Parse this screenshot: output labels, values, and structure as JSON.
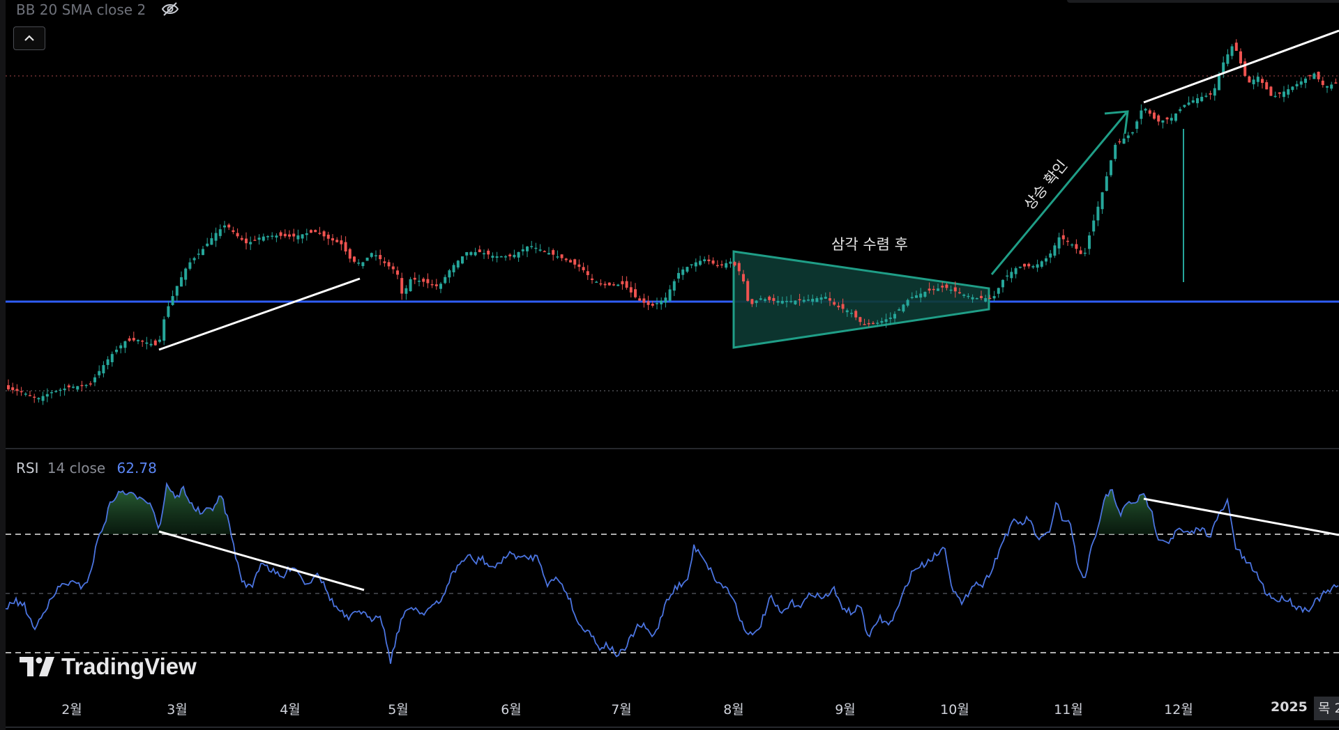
{
  "indicators": {
    "bb_label": "BB 20 SMA close 2",
    "rsi_name": "RSI",
    "rsi_params": "14 close",
    "rsi_value": "62.78"
  },
  "annotations": {
    "triangle_text": "삼각 수렴 후",
    "breakout_text": "상승 확인"
  },
  "brand": {
    "logo_text": "TradingView"
  },
  "time_axis": {
    "labels": [
      "2월",
      "3월",
      "4월",
      "5월",
      "6월",
      "7월",
      "8월",
      "9월",
      "10월",
      "11월",
      "12월"
    ],
    "year_label": "2025",
    "corner_label": "목 2"
  },
  "colors": {
    "up_candle": "#26a69a",
    "down_candle": "#ef5350",
    "rsi_line": "#4b74e0",
    "horizontal_line": "#2f5df5",
    "trend_line": "#ffffff",
    "triangle_stroke": "#1f9e87",
    "background": "#000000"
  },
  "chart_data": [
    {
      "type": "candlestick",
      "series": [
        {
          "name": "",
          "values": []
        }
      ],
      "price_levels_visible": 3,
      "grid": false,
      "drawings": [
        "trendline",
        "triangle",
        "arrow",
        "horizontal-line",
        "vertical-line"
      ]
    },
    {
      "type": "line",
      "series": [
        {
          "name": "RSI 14 close",
          "last_value": 62.78
        }
      ],
      "ylim": [
        0,
        100
      ],
      "levels": [
        70,
        50,
        30
      ]
    }
  ]
}
